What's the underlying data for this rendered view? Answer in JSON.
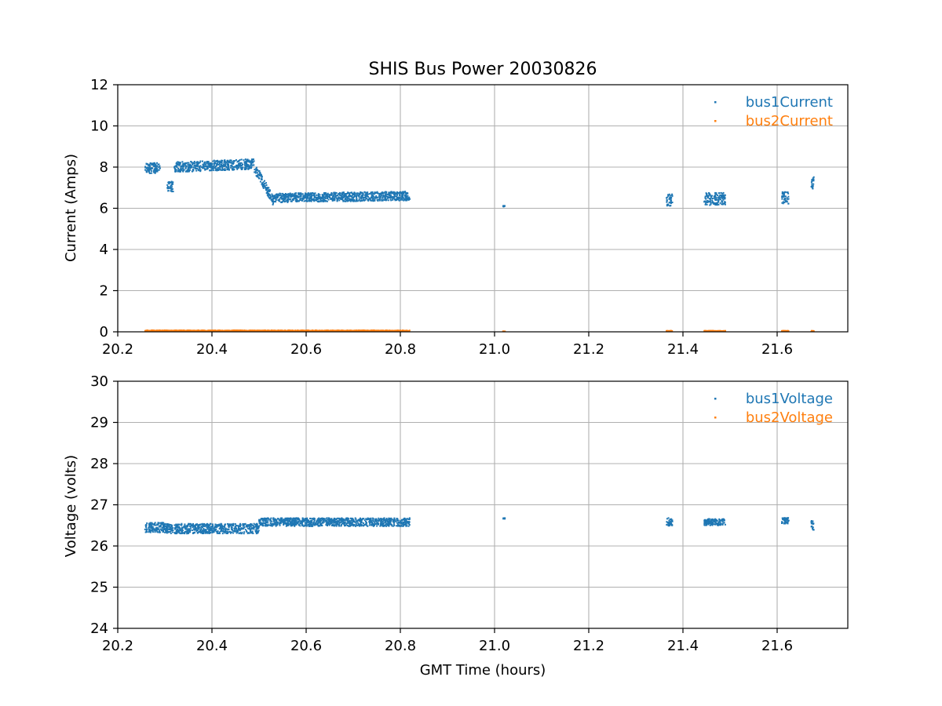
{
  "chart_data": [
    {
      "type": "scatter",
      "title": "SHIS Bus Power 20030826",
      "xlabel": "",
      "ylabel": "Current (Amps)",
      "xlim": [
        20.2,
        21.75
      ],
      "ylim": [
        0,
        12
      ],
      "xticks": [
        "20.2",
        "20.4",
        "20.6",
        "20.8",
        "21.0",
        "21.2",
        "21.4",
        "21.6"
      ],
      "yticks": [
        "0",
        "2",
        "4",
        "6",
        "8",
        "10",
        "12"
      ],
      "grid": true,
      "legend_position": "top-right",
      "series": [
        {
          "name": "bus1Current",
          "color": "#1f77b4",
          "segments": [
            {
              "x": [
                20.258,
                20.29
              ],
              "y": [
                7.95,
                7.95
              ],
              "spread": 0.25
            },
            {
              "x": [
                20.305,
                20.318
              ],
              "y": [
                7.05,
                7.05
              ],
              "spread": 0.25
            },
            {
              "x": [
                20.32,
                20.49
              ],
              "y": [
                8.0,
                8.15
              ],
              "spread": 0.25
            },
            {
              "x": [
                20.49,
                20.53
              ],
              "y": [
                8.0,
                6.4
              ],
              "spread": 0.25
            },
            {
              "x": [
                20.53,
                20.82
              ],
              "y": [
                6.5,
                6.6
              ],
              "spread": 0.22
            },
            {
              "x": [
                21.018,
                21.022
              ],
              "y": [
                6.1,
                6.1
              ],
              "spread": 0.02
            },
            {
              "x": [
                21.365,
                21.378
              ],
              "y": [
                6.4,
                6.4
              ],
              "spread": 0.3
            },
            {
              "x": [
                21.445,
                21.49
              ],
              "y": [
                6.45,
                6.45
              ],
              "spread": 0.3
            },
            {
              "x": [
                21.61,
                21.625
              ],
              "y": [
                6.5,
                6.5
              ],
              "spread": 0.3
            },
            {
              "x": [
                21.672,
                21.678
              ],
              "y": [
                7.25,
                7.25
              ],
              "spread": 0.3
            }
          ]
        },
        {
          "name": "bus2Current",
          "color": "#ff7f0e",
          "segments": [
            {
              "x": [
                20.258,
                20.82
              ],
              "y": [
                0.04,
                0.04
              ],
              "spread": 0.03
            },
            {
              "x": [
                21.018,
                21.022
              ],
              "y": [
                0.02,
                0.02
              ],
              "spread": 0.01
            },
            {
              "x": [
                21.365,
                21.378
              ],
              "y": [
                0.03,
                0.03
              ],
              "spread": 0.02
            },
            {
              "x": [
                21.445,
                21.49
              ],
              "y": [
                0.03,
                0.03
              ],
              "spread": 0.02
            },
            {
              "x": [
                21.61,
                21.625
              ],
              "y": [
                0.03,
                0.03
              ],
              "spread": 0.02
            },
            {
              "x": [
                21.672,
                21.678
              ],
              "y": [
                0.03,
                0.03
              ],
              "spread": 0.02
            }
          ]
        }
      ]
    },
    {
      "type": "scatter",
      "title": "",
      "xlabel": "GMT Time (hours)",
      "ylabel": "Voltage (volts)",
      "xlim": [
        20.2,
        21.75
      ],
      "ylim": [
        24,
        30
      ],
      "xticks": [
        "20.2",
        "20.4",
        "20.6",
        "20.8",
        "21.0",
        "21.2",
        "21.4",
        "21.6"
      ],
      "yticks": [
        "24",
        "25",
        "26",
        "27",
        "28",
        "29",
        "30"
      ],
      "grid": true,
      "legend_position": "top-right",
      "series": [
        {
          "name": "bus1Voltage",
          "color": "#1f77b4",
          "segments": [
            {
              "x": [
                20.258,
                20.3
              ],
              "y": [
                26.45,
                26.45
              ],
              "spread": 0.12
            },
            {
              "x": [
                20.3,
                20.5
              ],
              "y": [
                26.42,
                26.42
              ],
              "spread": 0.12
            },
            {
              "x": [
                20.5,
                20.82
              ],
              "y": [
                26.58,
                26.58
              ],
              "spread": 0.1
            },
            {
              "x": [
                21.018,
                21.022
              ],
              "y": [
                26.67,
                26.67
              ],
              "spread": 0.01
            },
            {
              "x": [
                21.365,
                21.378
              ],
              "y": [
                26.58,
                26.58
              ],
              "spread": 0.1
            },
            {
              "x": [
                21.445,
                21.49
              ],
              "y": [
                26.58,
                26.58
              ],
              "spread": 0.08
            },
            {
              "x": [
                21.61,
                21.625
              ],
              "y": [
                26.62,
                26.62
              ],
              "spread": 0.08
            },
            {
              "x": [
                21.672,
                21.678
              ],
              "y": [
                26.5,
                26.5
              ],
              "spread": 0.12
            }
          ]
        },
        {
          "name": "bus2Voltage",
          "color": "#ff7f0e",
          "segments": []
        }
      ]
    }
  ]
}
